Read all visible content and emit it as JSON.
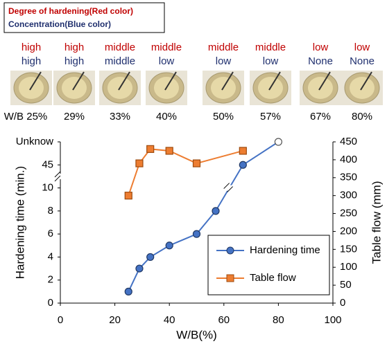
{
  "legend_box": {
    "lines": [
      "Degree of hardening(Red color)",
      "Concentration(Blue  color)"
    ]
  },
  "samples": [
    {
      "hardening": "high",
      "concentration": "high",
      "wb": "W/B 25%"
    },
    {
      "hardening": "high",
      "concentration": "high",
      "wb": "29%"
    },
    {
      "hardening": "middle",
      "concentration": "middle",
      "wb": "33%"
    },
    {
      "hardening": "middle",
      "concentration": "low",
      "wb": "40%"
    },
    {
      "hardening": "middle",
      "concentration": "low",
      "wb": "50%"
    },
    {
      "hardening": "middle",
      "concentration": "low",
      "wb": "57%"
    },
    {
      "hardening": "low",
      "concentration": "None",
      "wb": "67%"
    },
    {
      "hardening": "low",
      "concentration": "None",
      "wb": "80%"
    }
  ],
  "chart_data": {
    "type": "line",
    "x_label": "W/B(%)",
    "y_label": "Hardening time (min.)",
    "y2_label": "Table flow (mm)",
    "xlim": [
      0,
      100
    ],
    "xticks": [
      0,
      20,
      40,
      60,
      80,
      100
    ],
    "yticks": [
      0,
      2,
      4,
      6,
      8,
      10,
      45,
      "Unknow"
    ],
    "y2lim": [
      0,
      450
    ],
    "y2ticks": [
      0,
      50,
      100,
      150,
      200,
      250,
      300,
      350,
      400,
      450
    ],
    "legend": "lower right",
    "series": [
      {
        "name": "Hardening time",
        "color": "#4472c4",
        "marker": "circle",
        "x": [
          25,
          29,
          33,
          40,
          50,
          57,
          67,
          80
        ],
        "values": [
          1,
          3,
          4,
          5,
          6,
          8,
          45,
          "Unknow"
        ]
      },
      {
        "name": "Table flow",
        "color": "#ed7d31",
        "marker": "square",
        "axis": "y2",
        "x": [
          25,
          29,
          33,
          40,
          50,
          67
        ],
        "values": [
          300,
          390,
          430,
          425,
          390,
          425
        ]
      }
    ]
  }
}
